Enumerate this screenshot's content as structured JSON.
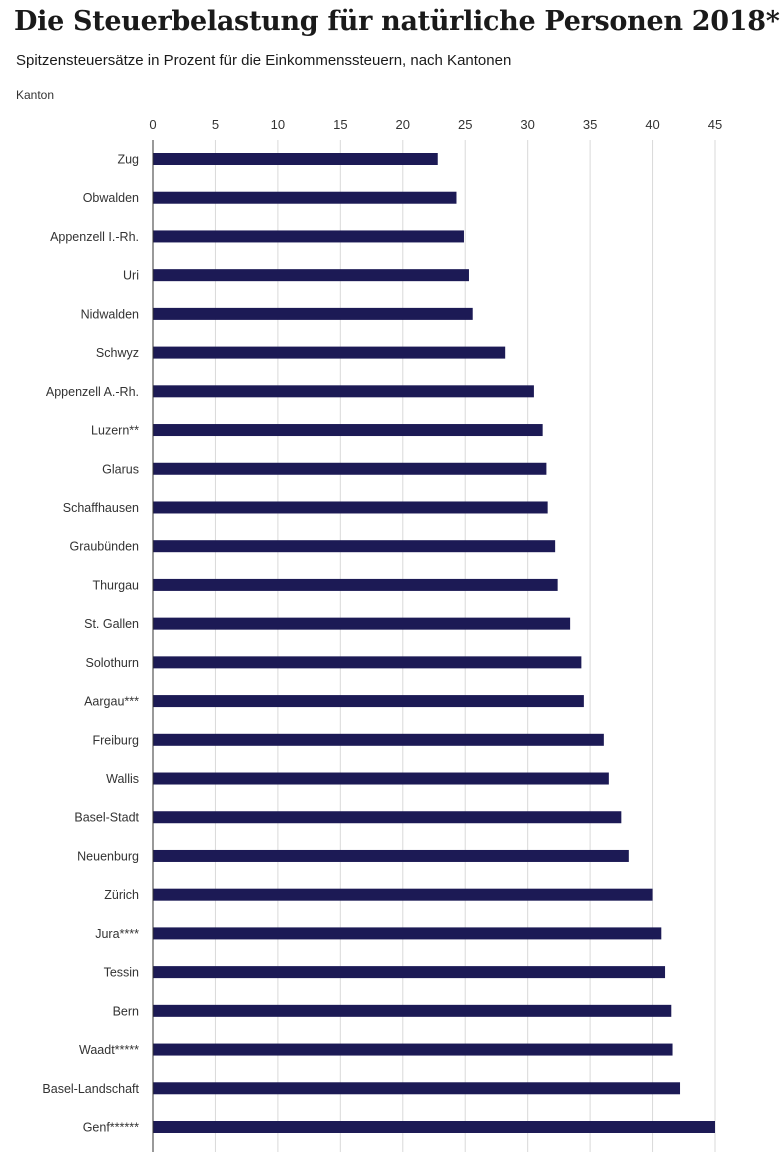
{
  "chart_data": {
    "type": "bar",
    "orientation": "horizontal",
    "title": "Die Steuerbelastung für natürliche Personen 2018*",
    "subtitle": "Spitzensteuersätze in Prozent für die Einkommenssteuern, nach Kantonen",
    "ylabel": "Kanton",
    "xlim": [
      0,
      45
    ],
    "xticks": [
      0,
      5,
      10,
      15,
      20,
      25,
      30,
      35,
      40,
      45
    ],
    "grid": true,
    "bar_color": "#1c1a55",
    "grid_color": "#d9d9d9",
    "categories": [
      "Zug",
      "Obwalden",
      "Appenzell I.-Rh.",
      "Uri",
      "Nidwalden",
      "Schwyz",
      "Appenzell A.-Rh.",
      "Luzern**",
      "Glarus",
      "Schaffhausen",
      "Graubünden",
      "Thurgau",
      "St. Gallen",
      "Solothurn",
      "Aargau***",
      "Freiburg",
      "Wallis",
      "Basel-Stadt",
      "Neuenburg",
      "Zürich",
      "Jura****",
      "Tessin",
      "Bern",
      "Waadt*****",
      "Basel-Landschaft",
      "Genf******"
    ],
    "values": [
      22.8,
      24.3,
      24.9,
      25.3,
      25.6,
      28.2,
      30.5,
      31.2,
      31.5,
      31.6,
      32.2,
      32.4,
      33.4,
      34.3,
      34.5,
      36.1,
      36.5,
      37.5,
      38.1,
      40.0,
      40.7,
      41.0,
      41.5,
      41.6,
      42.2,
      45.0
    ]
  }
}
